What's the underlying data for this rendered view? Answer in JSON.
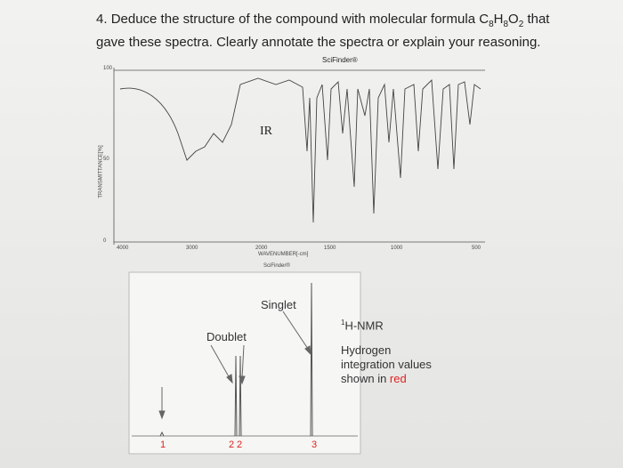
{
  "question": {
    "number": "4.",
    "text_before": "Deduce the structure of the compound with molecular formula ",
    "formula": [
      {
        "element": "C",
        "count": "8"
      },
      {
        "element": "H",
        "count": "8"
      },
      {
        "element": "O",
        "count": "2"
      }
    ],
    "text_after": " that gave these spectra. Clearly annotate the spectra or explain your reasoning."
  },
  "ir_spectrum": {
    "source": "SciFinder®",
    "label": "IR",
    "y_axis_label": "TRANSMITTANCE[%]",
    "y_ticks": [
      "100",
      "50",
      "0"
    ],
    "x_ticks": [
      "4000",
      "3000",
      "2000",
      "1500",
      "1000",
      "500"
    ],
    "x_axis_label": "WAVENUMBER[-cm]",
    "footer": "SciFinder®"
  },
  "nmr_spectrum": {
    "peak_labels": [
      "Singlet",
      "Doublet"
    ],
    "title_superscript": "1",
    "title": "H-NMR",
    "note": "Hydrogen integration values shown in ",
    "note_highlight": "red",
    "integrations": [
      "1",
      "2",
      "2",
      "3"
    ]
  }
}
